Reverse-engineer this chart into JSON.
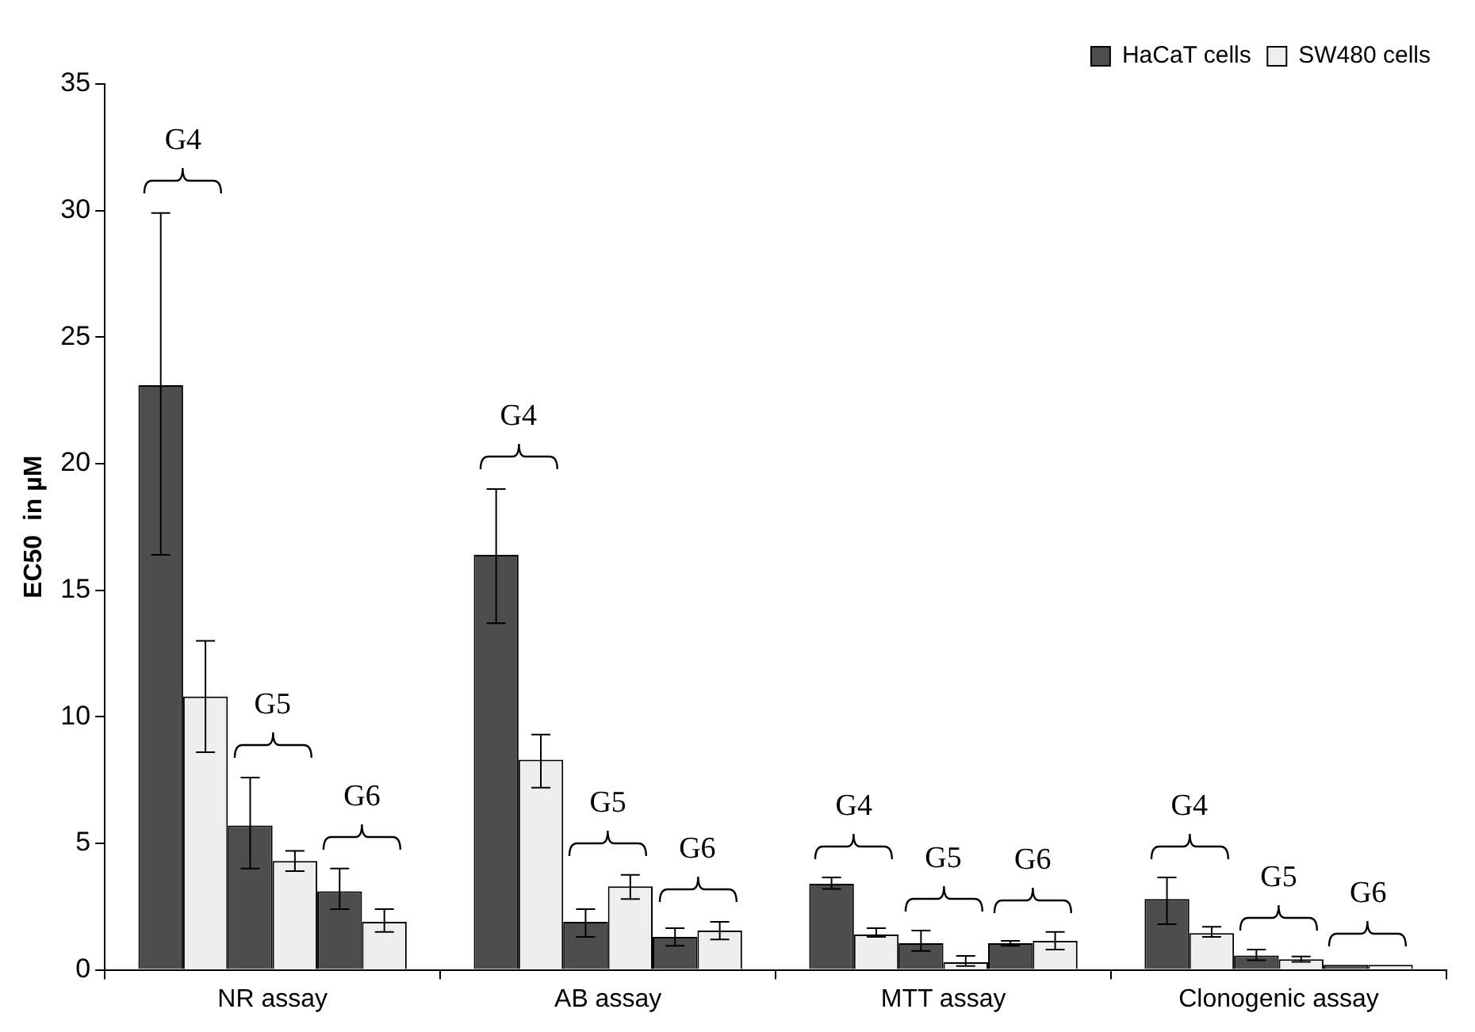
{
  "chart_data": {
    "type": "bar",
    "ylabel": "EC50  in µM",
    "categories": [
      "NR assay",
      "AB assay",
      "MTT assay",
      "Clonogenic assay"
    ],
    "series": [
      {
        "name": "HaCaT cells",
        "color": "#4d4d4d",
        "values": [
          23.1,
          16.4,
          3.4,
          2.8
        ],
        "errors": [
          [
            16.4,
            29.9
          ],
          [
            13.7,
            19.0
          ],
          [
            3.2,
            3.65
          ],
          [
            1.8,
            3.65
          ]
        ]
      },
      {
        "name": "SW480 cells",
        "color": "#eeeeee",
        "values": [
          10.8,
          8.3,
          1.4,
          1.45
        ],
        "errors": [
          [
            8.6,
            13.0
          ],
          [
            7.2,
            9.3
          ],
          [
            1.3,
            1.65
          ],
          [
            1.3,
            1.7
          ]
        ]
      },
      {
        "color": "#4d4d4d",
        "values": [
          5.7,
          1.9,
          1.05,
          0.57
        ],
        "errors": [
          [
            4.0,
            7.6
          ],
          [
            1.3,
            2.4
          ],
          [
            0.75,
            1.55
          ],
          [
            0.38,
            0.8
          ]
        ]
      },
      {
        "color": "#eeeeee",
        "values": [
          4.3,
          3.3,
          0.3,
          0.42
        ],
        "errors": [
          [
            3.9,
            4.7
          ],
          [
            2.8,
            3.75
          ],
          [
            0.15,
            0.55
          ],
          [
            0.32,
            0.53
          ]
        ]
      },
      {
        "color": "#4d4d4d",
        "values": [
          3.1,
          1.3,
          1.05,
          0.2
        ],
        "errors": [
          [
            2.4,
            4.0
          ],
          [
            0.95,
            1.65
          ],
          [
            0.95,
            1.15
          ],
          null
        ]
      },
      {
        "color": "#eeeeee",
        "values": [
          1.9,
          1.55,
          1.15,
          0.2
        ],
        "errors": [
          [
            1.5,
            2.4
          ],
          [
            1.2,
            1.9
          ],
          [
            0.8,
            1.5
          ],
          null
        ]
      }
    ],
    "ylim": [
      0,
      35
    ],
    "yticks": [
      0,
      5,
      10,
      15,
      20,
      25,
      30,
      35
    ],
    "grid": false,
    "legend": "top right",
    "annotations": [
      "G4",
      "G5",
      "G6",
      "G4",
      "G5",
      "G6",
      "G4",
      "G5",
      "G6",
      "G4",
      "G5",
      "G6"
    ]
  }
}
